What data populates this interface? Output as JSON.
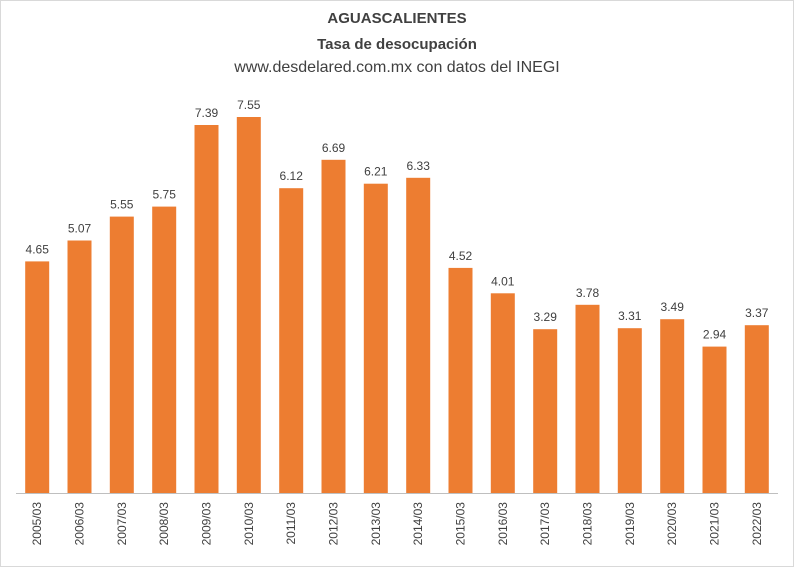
{
  "chart_data": {
    "type": "bar",
    "title": "AGUASCALIENTES",
    "subtitle": "Tasa de desocupación",
    "source": "www.desdelared.com.mx con datos del INEGI",
    "categories": [
      "2005/03",
      "2006/03",
      "2007/03",
      "2008/03",
      "2009/03",
      "2010/03",
      "2011/03",
      "2012/03",
      "2013/03",
      "2014/03",
      "2015/03",
      "2016/03",
      "2017/03",
      "2018/03",
      "2019/03",
      "2020/03",
      "2021/03",
      "2022/03"
    ],
    "values": [
      4.65,
      5.07,
      5.55,
      5.75,
      7.39,
      7.55,
      6.12,
      6.69,
      6.21,
      6.33,
      4.52,
      4.01,
      3.29,
      3.78,
      3.31,
      3.49,
      2.94,
      3.37
    ],
    "value_labels": [
      "4.65",
      "5.07",
      "5.55",
      "5.75",
      "7.39",
      "7.55",
      "6.12",
      "6.69",
      "6.21",
      "6.33",
      "4.52",
      "4.01",
      "3.29",
      "3.78",
      "3.31",
      "3.49",
      "2.94",
      "3.37"
    ],
    "ylim": [
      0,
      7.55
    ],
    "grid": false,
    "legend": "none",
    "bar_color": "#ED7D31",
    "axis_color": "#bfbfbf"
  }
}
